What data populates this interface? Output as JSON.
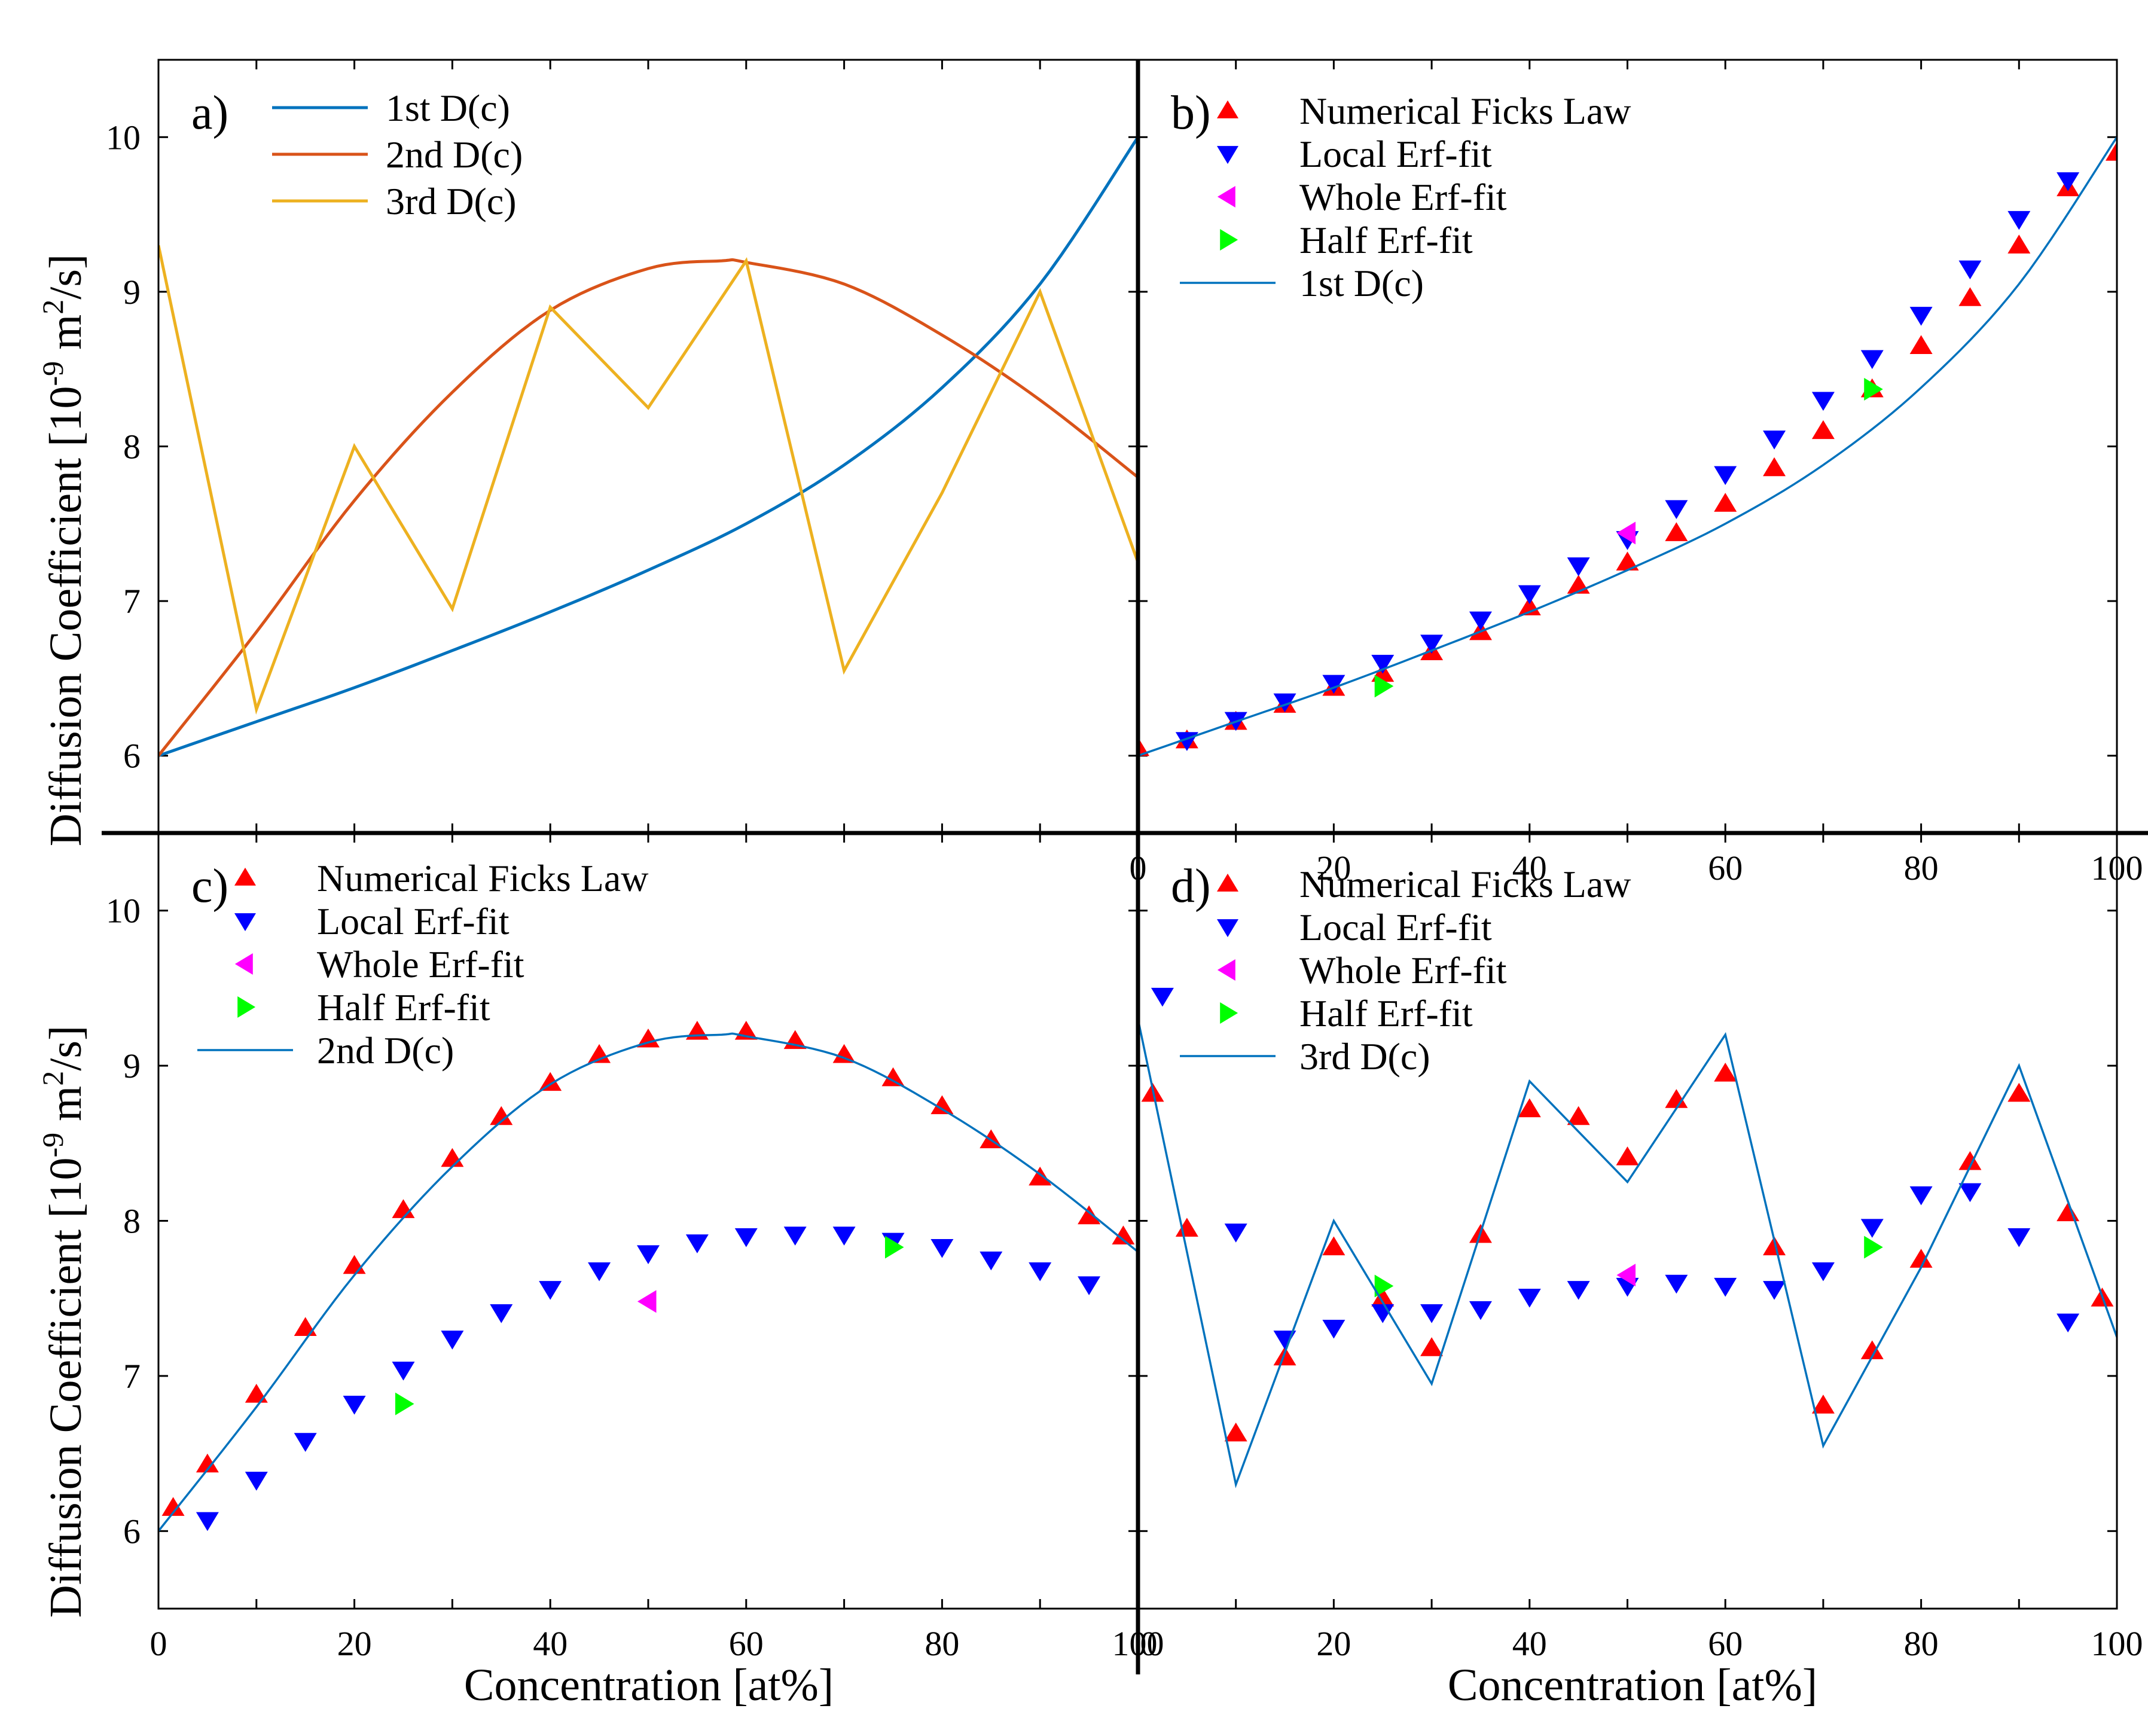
{
  "figure": {
    "ylabel_main": "Diffusion Coefficient [10",
    "ylabel_exp": "-9",
    "ylabel_mid": " m",
    "ylabel_exp2": "2",
    "ylabel_tail": "/s]",
    "xlabel": "Concentration [at%]"
  },
  "colors": {
    "line1": "#0072BD",
    "line2": "#D95319",
    "line3": "#EDB120",
    "fick": "#FF0000",
    "local": "#0000FF",
    "whole": "#FF00FF",
    "half": "#00FF00",
    "fit_line": "#0072BD"
  },
  "chart_data": [
    {
      "panel": "a)",
      "type": "line",
      "xlim": [
        0,
        100
      ],
      "ylim": [
        5.5,
        10.5
      ],
      "yticks": [
        6,
        7,
        8,
        9,
        10
      ],
      "xticks": [],
      "legend_position": "top-left",
      "series": [
        {
          "name": "1st  D(c)",
          "kind": "exp",
          "x": [
            0,
            10,
            20,
            30,
            40,
            50,
            60,
            70,
            80,
            90,
            100
          ],
          "values": [
            6.0,
            6.22,
            6.44,
            6.68,
            6.93,
            7.2,
            7.5,
            7.88,
            8.38,
            9.05,
            10.0
          ]
        },
        {
          "name": "2nd D(c)",
          "kind": "parab",
          "x": [
            0,
            10,
            20,
            30,
            40,
            50,
            57.5,
            60,
            70,
            80,
            90,
            100
          ],
          "values": [
            6.0,
            6.8,
            7.65,
            8.35,
            8.88,
            9.15,
            9.2,
            9.19,
            9.05,
            8.72,
            8.3,
            7.8
          ]
        },
        {
          "name": "3rd  D(c)",
          "kind": "zigzag",
          "x": [
            0,
            10,
            20,
            30,
            40,
            50,
            60,
            70,
            80,
            90,
            100
          ],
          "values": [
            9.3,
            6.3,
            8.0,
            6.95,
            8.9,
            8.25,
            9.2,
            6.55,
            7.7,
            9.0,
            7.25
          ]
        }
      ]
    },
    {
      "panel": "b)",
      "type": "scatter",
      "xlim": [
        0,
        100
      ],
      "ylim": [
        5.5,
        10.5
      ],
      "yticks": [
        6,
        7,
        8,
        9,
        10
      ],
      "xticks": [
        0,
        20,
        40,
        60,
        80,
        100
      ],
      "legend_position": "top-left",
      "series": [
        {
          "name": "Numerical Ficks Law",
          "marker": "triangle-up",
          "x": [
            0,
            5,
            10,
            15,
            20,
            25,
            30,
            35,
            40,
            45,
            50,
            55,
            60,
            65,
            70,
            75,
            80,
            85,
            90,
            95,
            100
          ],
          "values": [
            6.05,
            6.1,
            6.22,
            6.33,
            6.44,
            6.53,
            6.67,
            6.8,
            6.96,
            7.1,
            7.25,
            7.44,
            7.63,
            7.86,
            8.1,
            8.37,
            8.65,
            8.96,
            9.3,
            9.67,
            9.9
          ]
        },
        {
          "name": "Local Erf-fit",
          "marker": "triangle-down",
          "x": [
            5,
            10,
            15,
            20,
            25,
            30,
            35,
            40,
            45,
            50,
            55,
            60,
            65,
            70,
            75,
            80,
            85,
            90,
            95
          ],
          "values": [
            6.1,
            6.23,
            6.35,
            6.47,
            6.6,
            6.73,
            6.88,
            7.05,
            7.23,
            7.4,
            7.6,
            7.82,
            8.05,
            8.3,
            8.57,
            8.85,
            9.15,
            9.47,
            9.72
          ]
        },
        {
          "name": "Whole Erf-fit",
          "marker": "triangle-left",
          "x": [
            50
          ],
          "values": [
            7.44
          ]
        },
        {
          "name": "Half Erf-fit",
          "marker": "triangle-right",
          "x": [
            25,
            75
          ],
          "values": [
            6.45,
            8.37
          ]
        },
        {
          "name": "1st D(c)",
          "marker": "line",
          "ref": "line1"
        }
      ]
    },
    {
      "panel": "c)",
      "type": "scatter",
      "xlim": [
        0,
        100
      ],
      "ylim": [
        5.5,
        10.5
      ],
      "yticks": [
        6,
        7,
        8,
        9,
        10
      ],
      "xticks": [
        0,
        20,
        40,
        60,
        80,
        100
      ],
      "legend_position": "top-left",
      "series": [
        {
          "name": "Numerical Ficks Law",
          "marker": "triangle-up",
          "x": [
            1.5,
            5,
            10,
            15,
            20,
            25,
            30,
            35,
            40,
            45,
            50,
            55,
            60,
            65,
            70,
            75,
            80,
            85,
            90,
            95,
            98.5
          ],
          "values": [
            6.15,
            6.43,
            6.88,
            7.31,
            7.71,
            8.07,
            8.4,
            8.67,
            8.89,
            9.07,
            9.17,
            9.22,
            9.22,
            9.16,
            9.07,
            8.92,
            8.74,
            8.52,
            8.28,
            8.03,
            7.9
          ]
        },
        {
          "name": "Local Erf-fit",
          "marker": "triangle-down",
          "x": [
            5,
            10,
            15,
            20,
            25,
            30,
            35,
            40,
            45,
            50,
            55,
            60,
            65,
            70,
            75,
            80,
            85,
            90,
            95
          ],
          "values": [
            6.07,
            6.33,
            6.58,
            6.82,
            7.04,
            7.24,
            7.41,
            7.56,
            7.68,
            7.79,
            7.86,
            7.9,
            7.91,
            7.91,
            7.87,
            7.83,
            7.75,
            7.68,
            7.59
          ]
        },
        {
          "name": "Whole Erf-fit",
          "marker": "triangle-left",
          "x": [
            50
          ],
          "values": [
            7.48
          ]
        },
        {
          "name": "Half Erf-fit",
          "marker": "triangle-right",
          "x": [
            25,
            75
          ],
          "values": [
            6.82,
            7.83
          ]
        },
        {
          "name": "2nd D(c)",
          "marker": "line",
          "ref": "line2"
        }
      ]
    },
    {
      "panel": "d)",
      "type": "scatter",
      "xlim": [
        0,
        100
      ],
      "ylim": [
        5.5,
        10.5
      ],
      "yticks": [
        6,
        7,
        8,
        9,
        10
      ],
      "xticks": [
        0,
        20,
        40,
        60,
        80,
        100
      ],
      "legend_position": "top-left",
      "series": [
        {
          "name": "Numerical Ficks Law",
          "marker": "triangle-up",
          "x": [
            1.5,
            5,
            10,
            15,
            20,
            25,
            30,
            35,
            40,
            45,
            50,
            55,
            60,
            65,
            70,
            75,
            80,
            85,
            90,
            95,
            98.5
          ],
          "values": [
            8.82,
            7.95,
            6.63,
            7.12,
            7.83,
            7.5,
            7.18,
            7.91,
            8.72,
            8.67,
            8.41,
            8.78,
            8.95,
            7.83,
            6.81,
            7.16,
            7.75,
            8.38,
            8.82,
            8.05,
            7.5
          ]
        },
        {
          "name": "Local Erf-fit",
          "marker": "triangle-down",
          "x": [
            2.5,
            10,
            15,
            20,
            25,
            30,
            35,
            40,
            45,
            50,
            55,
            60,
            65,
            70,
            75,
            80,
            85,
            90,
            95
          ],
          "values": [
            9.45,
            7.93,
            7.24,
            7.31,
            7.41,
            7.41,
            7.43,
            7.51,
            7.56,
            7.58,
            7.6,
            7.58,
            7.56,
            7.68,
            7.96,
            8.17,
            8.19,
            7.9,
            7.35
          ]
        },
        {
          "name": "Whole Erf-fit",
          "marker": "triangle-left",
          "x": [
            50
          ],
          "values": [
            7.65
          ]
        },
        {
          "name": "Half Erf-fit",
          "marker": "triangle-right",
          "x": [
            25,
            75
          ],
          "values": [
            7.58,
            7.83
          ]
        },
        {
          "name": "3rd D(c)",
          "marker": "line",
          "ref": "line3"
        }
      ]
    }
  ]
}
